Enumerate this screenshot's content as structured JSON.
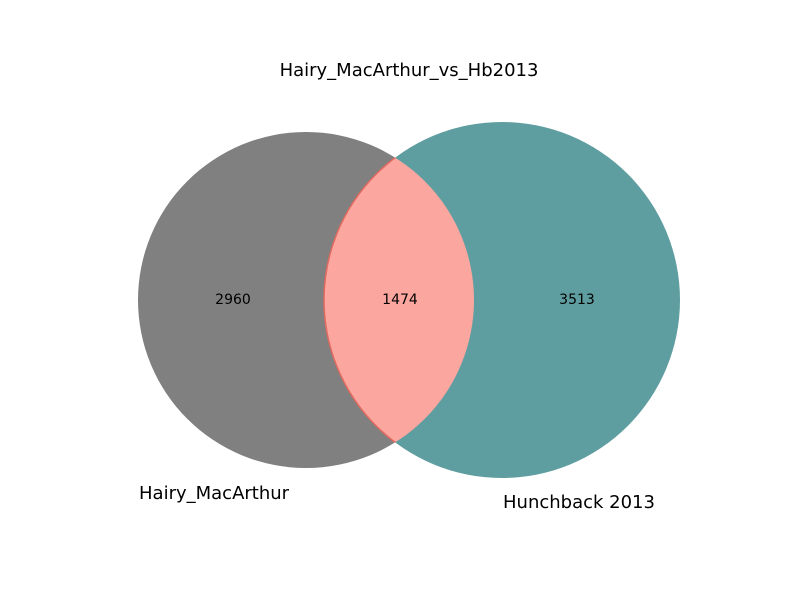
{
  "chart_data": {
    "type": "venn",
    "title": "Hairy_MacArthur_vs_Hb2013",
    "sets": [
      {
        "label": "Hairy_MacArthur",
        "only_count": "2960",
        "color": "#808080"
      },
      {
        "label": "Hunchback 2013",
        "only_count": "3513",
        "color": "#5f9ea0"
      }
    ],
    "intersection": {
      "count": "1474",
      "color": "#fba69f",
      "edge_color": "#e06a5f"
    },
    "values": {
      "left_only": 2960,
      "right_only": 3513,
      "both": 1474
    }
  }
}
